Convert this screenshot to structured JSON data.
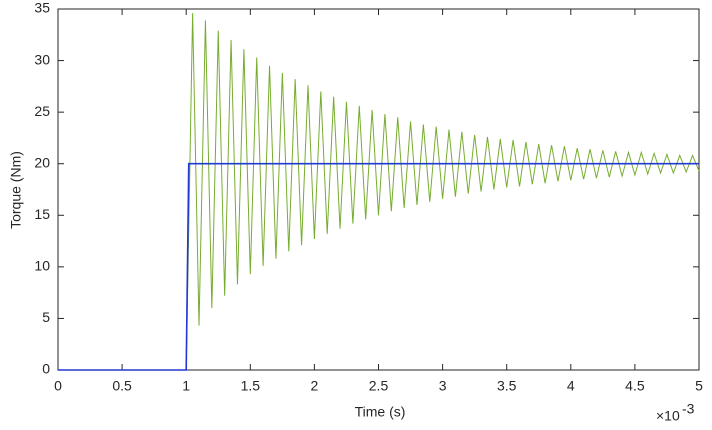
{
  "chart_data": {
    "type": "line",
    "xlabel": "Time (s)",
    "ylabel": "Torque (Nm)",
    "x_multiplier": "×10",
    "x_multiplier_exponent": "-3",
    "xlim": [
      0,
      5
    ],
    "xticks": [
      0,
      0.5,
      1,
      1.5,
      2,
      2.5,
      3,
      3.5,
      4,
      4.5,
      5
    ],
    "ylim": [
      0,
      35
    ],
    "yticks": [
      0,
      5,
      10,
      15,
      20,
      25,
      30,
      35
    ],
    "grid": false,
    "series": [
      {
        "color": "#77ac30",
        "x": [
          0,
          1.0,
          1.05,
          1.1,
          1.15,
          1.2,
          1.25,
          1.3,
          1.35,
          1.4,
          1.45,
          1.5,
          1.55,
          1.6,
          1.65,
          1.7,
          1.75,
          1.8,
          1.85,
          1.9,
          1.95,
          2.0,
          2.05,
          2.1,
          2.15,
          2.2,
          2.25,
          2.3,
          2.35,
          2.4,
          2.45,
          2.5,
          2.55,
          2.6,
          2.65,
          2.7,
          2.75,
          2.8,
          2.85,
          2.9,
          2.95,
          3.0,
          3.05,
          3.1,
          3.15,
          3.2,
          3.25,
          3.3,
          3.35,
          3.4,
          3.45,
          3.5,
          3.55,
          3.6,
          3.65,
          3.7,
          3.75,
          3.8,
          3.85,
          3.9,
          3.95,
          4.0,
          4.05,
          4.1,
          4.15,
          4.2,
          4.25,
          4.3,
          4.35,
          4.4,
          4.45,
          4.5,
          4.55,
          4.6,
          4.65,
          4.7,
          4.75,
          4.8,
          4.85,
          4.9,
          4.95,
          5.0
        ],
        "values": [
          0,
          0,
          34.6,
          4.3,
          33.9,
          6.0,
          32.9,
          7.2,
          32.0,
          8.3,
          31.1,
          9.3,
          30.3,
          10.1,
          29.5,
          10.8,
          28.8,
          11.5,
          28.2,
          12.1,
          27.6,
          12.7,
          27.0,
          13.2,
          26.5,
          13.7,
          26.0,
          14.2,
          25.6,
          14.6,
          25.2,
          15.0,
          24.8,
          15.4,
          24.5,
          15.7,
          24.1,
          16.0,
          23.8,
          16.3,
          23.6,
          16.6,
          23.3,
          16.8,
          23.1,
          17.1,
          22.8,
          17.3,
          22.6,
          17.5,
          22.4,
          17.7,
          22.3,
          17.8,
          22.1,
          18.0,
          21.9,
          18.1,
          21.8,
          18.3,
          21.7,
          18.4,
          21.5,
          18.5,
          21.4,
          18.6,
          21.3,
          18.7,
          21.2,
          18.8,
          21.1,
          18.9,
          21.1,
          19.0,
          21.0,
          19.1,
          20.9,
          19.1,
          20.8,
          19.2,
          20.8,
          19.3
        ]
      },
      {
        "color": "#2138d4",
        "x": [
          0,
          1.0,
          1.02,
          5.0
        ],
        "values": [
          0,
          0,
          20,
          20
        ]
      }
    ]
  }
}
